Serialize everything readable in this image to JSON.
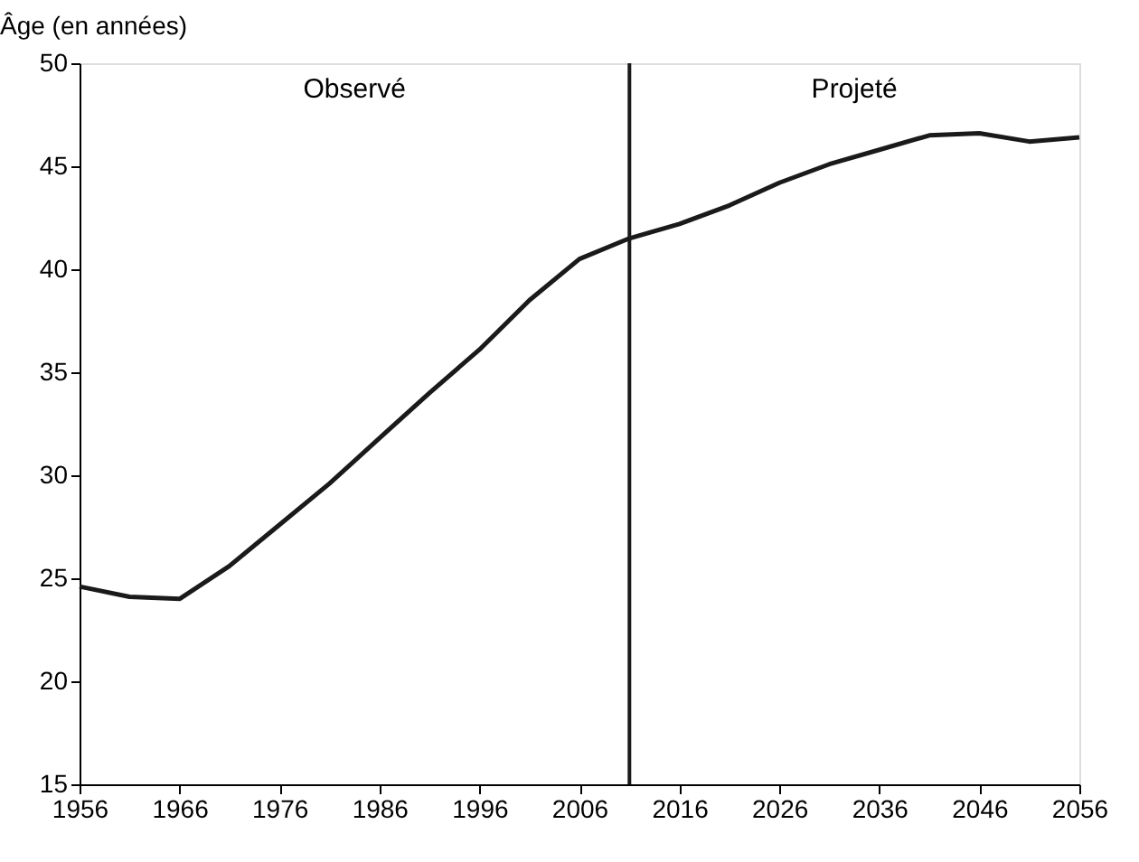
{
  "chart_data": {
    "type": "line",
    "ylabel": "Âge (en années)",
    "x": [
      1956,
      1961,
      1966,
      1971,
      1976,
      1981,
      1986,
      1991,
      1996,
      2001,
      2006,
      2011,
      2016,
      2021,
      2026,
      2031,
      2036,
      2041,
      2046,
      2051,
      2056
    ],
    "series": [
      {
        "color": "#1a1a1a",
        "values": [
          24.6,
          24.1,
          24.0,
          25.6,
          27.6,
          29.6,
          31.8,
          34.0,
          36.1,
          38.5,
          40.5,
          41.5,
          42.2,
          43.1,
          44.2,
          45.1,
          45.8,
          46.5,
          46.6,
          46.2,
          46.4
        ]
      }
    ],
    "xlim": [
      1956,
      2056
    ],
    "xticks": [
      1956,
      1966,
      1976,
      1986,
      1996,
      2006,
      2016,
      2026,
      2036,
      2046,
      2056
    ],
    "ylim": [
      15,
      50
    ],
    "yticks": [
      15,
      20,
      25,
      30,
      35,
      40,
      45,
      50
    ],
    "ref_lines": [
      {
        "axis": "x",
        "value": 2011,
        "color": "#1a1a1a"
      }
    ],
    "annotations": [
      "Observé",
      "Projeté"
    ],
    "grid": false
  }
}
